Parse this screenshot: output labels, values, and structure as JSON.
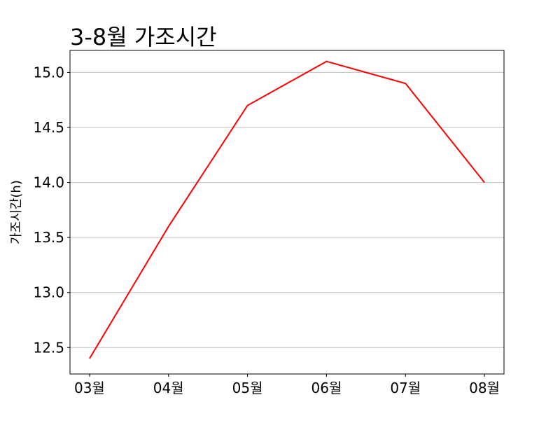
{
  "chart_data": {
    "type": "line",
    "title": "3-8월 가조시간",
    "xlabel": "",
    "ylabel": "가조시간(h)",
    "categories": [
      "03월",
      "04월",
      "05월",
      "06월",
      "07월",
      "08월"
    ],
    "series": [
      {
        "values": [
          12.4,
          13.6,
          14.7,
          15.1,
          14.9,
          14.0
        ],
        "color": "#ff0000"
      }
    ],
    "ylim": [
      12.26,
      15.2
    ],
    "yticks": [
      12.5,
      13.0,
      13.5,
      14.0,
      14.5,
      15.0
    ],
    "ytick_labels": [
      "12.5",
      "13.0",
      "13.5",
      "14.0",
      "14.5",
      "15.0"
    ],
    "grid": "horizontal",
    "grid_color": "#c0c0c0",
    "legend": "none"
  }
}
